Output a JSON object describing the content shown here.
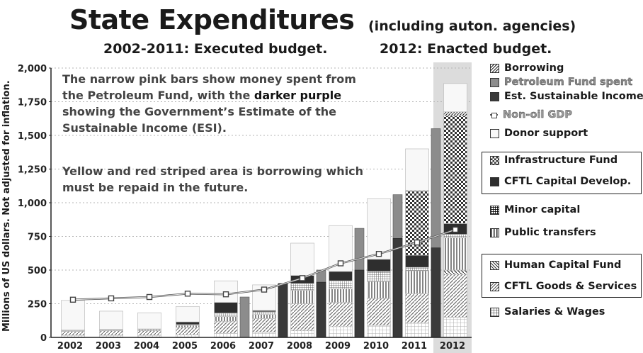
{
  "title": "State Expenditures",
  "title_note": "(including auton. agencies)",
  "subtitle_left": "2002-2011: Executed budget.",
  "subtitle_right": "2012: Enacted budget.",
  "annotation": {
    "p1_a": "The narrow pink bars show money spent from the Petroleum Fund, with the ",
    "p1_b": "darker purple",
    "p1_c": " showing the Government’s Estimate of the Sustainable Income (ESI).",
    "p2": "Yellow and red striped area is borrowing which must be repaid in the future."
  },
  "legend": [
    {
      "label": "Borrowing",
      "swatch": "hatch-diag"
    },
    {
      "label": "Petroleum Fund spent",
      "swatch": "#8c8c8c"
    },
    {
      "label": "Est. Sustainable Income",
      "swatch": "#3a3a3a"
    },
    {
      "label": "Non-oil GDP",
      "swatch": "line-marker"
    },
    {
      "label": "Donor support",
      "swatch": "#f8f8f8"
    },
    {
      "label": "Infrastructure Fund",
      "swatch": "checker"
    },
    {
      "label": "CFTL Capital Develop.",
      "swatch": "#2e2e2e"
    },
    {
      "label": "Minor capital",
      "swatch": "grid-dense"
    },
    {
      "label": "Public transfers",
      "swatch": "vlines"
    },
    {
      "label": "Human Capital Fund",
      "swatch": "hatch-back"
    },
    {
      "label": "CFTL Goods & Services",
      "swatch": "hatch-fwd"
    },
    {
      "label": "Salaries & Wages",
      "swatch": "grid-light"
    }
  ],
  "chart_data": {
    "type": "bar",
    "title": "State Expenditures",
    "ylabel": "Millions of US dollars. Not adjusted for inflation.",
    "ylim": [
      0,
      2000
    ],
    "yticks": [
      "0",
      "250",
      "500",
      "750",
      "1,000",
      "1,250",
      "1,500",
      "1,750",
      "2,000"
    ],
    "categories": [
      "2002",
      "2003",
      "2004",
      "2005",
      "2006",
      "2007",
      "2008",
      "2009",
      "2010",
      "2011",
      "2012"
    ],
    "highlight_category": "2012",
    "stacked_series": [
      {
        "name": "Salaries & Wages",
        "values": [
          15,
          15,
          15,
          20,
          30,
          40,
          50,
          80,
          90,
          105,
          150
        ]
      },
      {
        "name": "CFTL Goods & Services",
        "values": [
          30,
          35,
          35,
          55,
          90,
          100,
          200,
          180,
          200,
          220,
          320
        ]
      },
      {
        "name": "Human Capital Fund",
        "values": [
          0,
          0,
          0,
          0,
          0,
          0,
          0,
          0,
          0,
          0,
          30
        ]
      },
      {
        "name": "Public transfers",
        "values": [
          5,
          5,
          8,
          15,
          35,
          30,
          100,
          100,
          125,
          170,
          240
        ]
      },
      {
        "name": "Minor capital",
        "values": [
          3,
          3,
          3,
          5,
          25,
          20,
          50,
          60,
          75,
          25,
          25
        ]
      },
      {
        "name": "CFTL Capital Develop.",
        "values": [
          2,
          2,
          2,
          20,
          80,
          10,
          60,
          70,
          90,
          90,
          80
        ]
      },
      {
        "name": "Infrastructure Fund",
        "values": [
          0,
          0,
          0,
          0,
          0,
          0,
          0,
          0,
          0,
          480,
          800
        ]
      },
      {
        "name": "Borrowing",
        "values": [
          0,
          0,
          0,
          0,
          0,
          0,
          0,
          0,
          0,
          0,
          30
        ]
      },
      {
        "name": "Donor support",
        "values": [
          220,
          135,
          120,
          115,
          160,
          190,
          240,
          340,
          450,
          310,
          210
        ]
      }
    ],
    "petroleum_fund_spent": [
      0,
      0,
      0,
      0,
      0,
      300,
      400,
      500,
      810,
      1060,
      1550
    ],
    "est_sustainable_income": [
      0,
      0,
      0,
      0,
      0,
      0,
      400,
      410,
      500,
      735,
      665
    ],
    "non_oil_gdp": [
      280,
      290,
      300,
      325,
      320,
      355,
      440,
      550,
      620,
      705,
      800
    ]
  }
}
